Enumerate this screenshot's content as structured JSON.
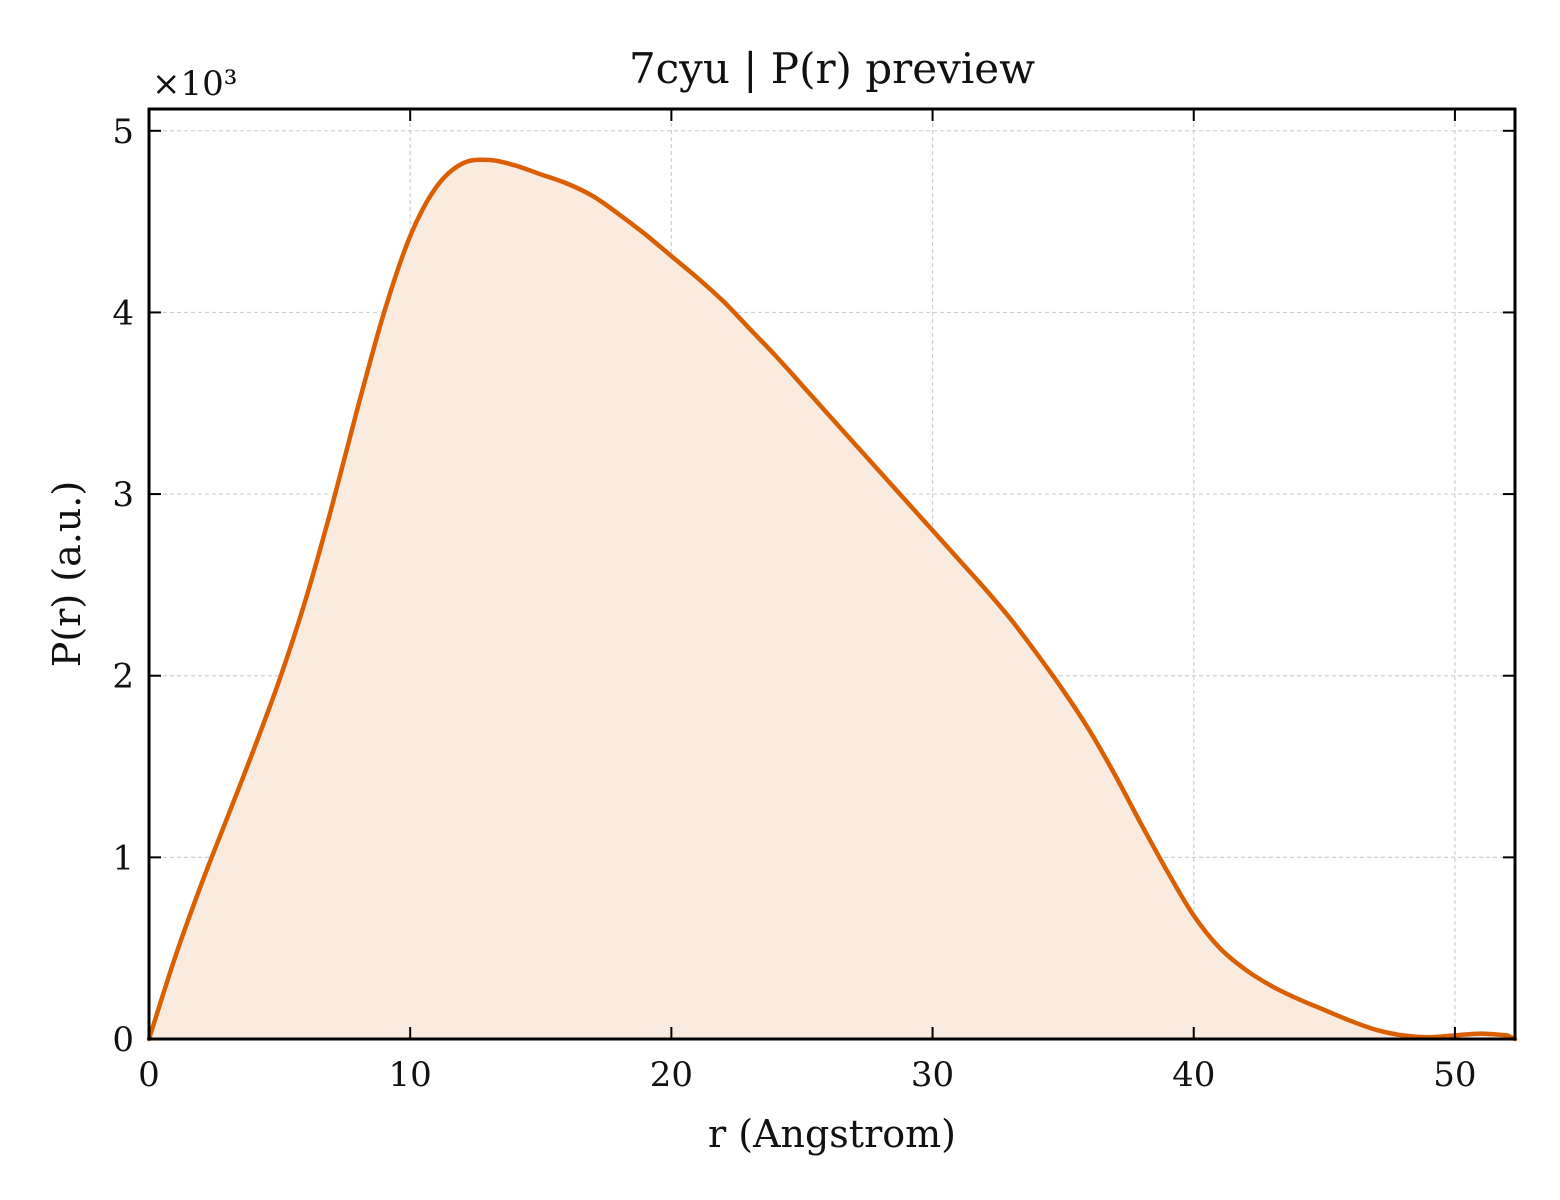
{
  "chart_data": {
    "type": "area",
    "title": "7cyu | P(r) preview",
    "xlabel": "r (Angstrom)",
    "ylabel": "P(r) (a.u.)",
    "y_offset_label": "×10³",
    "xlim": [
      0,
      52.3
    ],
    "ylim": [
      0,
      5.12
    ],
    "x_ticks": [
      0,
      10,
      20,
      30,
      40,
      50
    ],
    "y_ticks": [
      0,
      1,
      2,
      3,
      4,
      5
    ],
    "grid": true,
    "line_color": "#d95f02",
    "fill_color": "#f9ebe0",
    "series": [
      {
        "x": [
          0,
          1,
          2,
          3,
          4,
          5,
          6,
          7,
          8,
          9,
          10,
          11,
          12,
          13,
          14,
          15,
          16,
          17,
          18,
          19,
          20,
          21,
          22,
          23,
          24,
          25,
          26,
          27,
          28,
          29,
          30,
          31,
          32,
          33,
          34,
          35,
          36,
          37,
          38,
          39,
          40,
          41,
          42,
          43,
          44,
          45,
          46,
          47,
          48,
          49,
          50,
          51,
          52
        ],
        "y": [
          0,
          0.45,
          0.85,
          1.22,
          1.59,
          1.98,
          2.42,
          2.93,
          3.48,
          4.0,
          4.42,
          4.69,
          4.82,
          4.84,
          4.81,
          4.76,
          4.71,
          4.64,
          4.54,
          4.43,
          4.31,
          4.19,
          4.06,
          3.91,
          3.76,
          3.6,
          3.44,
          3.28,
          3.12,
          2.96,
          2.8,
          2.64,
          2.48,
          2.31,
          2.12,
          1.92,
          1.7,
          1.45,
          1.18,
          0.92,
          0.68,
          0.5,
          0.38,
          0.29,
          0.22,
          0.16,
          0.1,
          0.05,
          0.02,
          0.01,
          0.02,
          0.03,
          0.02
        ]
      }
    ]
  }
}
